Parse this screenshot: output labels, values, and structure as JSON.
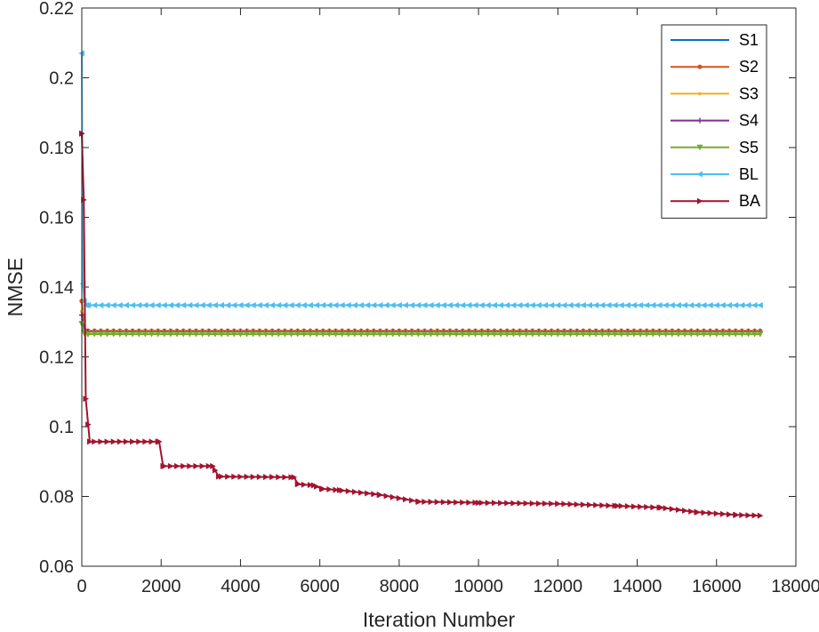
{
  "chart_data": {
    "type": "line",
    "title": "",
    "xlabel": "Iteration Number",
    "ylabel": "NMSE",
    "xlim": [
      0,
      18000
    ],
    "ylim": [
      0.06,
      0.22
    ],
    "xticks": [
      0,
      2000,
      4000,
      6000,
      8000,
      10000,
      12000,
      14000,
      16000,
      18000
    ],
    "xtick_labels": [
      "0",
      "2000",
      "4000",
      "6000",
      "8000",
      "10000",
      "12000",
      "14000",
      "16000",
      "18000"
    ],
    "yticks": [
      0.06,
      0.08,
      0.1,
      0.12,
      0.14,
      0.16,
      0.18,
      0.2,
      0.22
    ],
    "ytick_labels": [
      "0.06",
      "0.08",
      "0.1",
      "0.12",
      "0.14",
      "0.16",
      "0.18",
      "0.2",
      "0.22"
    ],
    "grid": false,
    "legend_position": "top-right",
    "series": [
      {
        "name": "S1",
        "color": "#0072BD",
        "marker": "none",
        "x": [
          0,
          60,
          150,
          17100
        ],
        "y": [
          0.131,
          0.1275,
          0.1273,
          0.1273
        ]
      },
      {
        "name": "S2",
        "color": "#D95319",
        "marker": "dot",
        "x": [
          0,
          60,
          150,
          17100
        ],
        "y": [
          0.136,
          0.128,
          0.1275,
          0.1275
        ]
      },
      {
        "name": "S3",
        "color": "#EDB120",
        "marker": "point",
        "x": [
          0,
          60,
          150,
          17100
        ],
        "y": [
          0.133,
          0.1278,
          0.1274,
          0.1274
        ]
      },
      {
        "name": "S4",
        "color": "#7E2F8E",
        "marker": "plus",
        "x": [
          0,
          60,
          150,
          17100
        ],
        "y": [
          0.132,
          0.1276,
          0.1272,
          0.1272
        ]
      },
      {
        "name": "S5",
        "color": "#77AC30",
        "marker": "triangle-down",
        "x": [
          0,
          60,
          150,
          17100
        ],
        "y": [
          0.1295,
          0.1268,
          0.1265,
          0.1265
        ]
      },
      {
        "name": "BL",
        "color": "#4DBEEE",
        "marker": "triangle-left",
        "x": [
          0,
          30,
          60,
          110,
          17100
        ],
        "y": [
          0.207,
          0.141,
          0.136,
          0.1348,
          0.1348
        ]
      },
      {
        "name": "BA",
        "color": "#A2142F",
        "marker": "triangle-right",
        "x": [
          0,
          50,
          100,
          200,
          1950,
          2050,
          3300,
          3450,
          5350,
          5450,
          5850,
          6050,
          6500,
          7500,
          8500,
          10000,
          12000,
          13500,
          14600,
          15500,
          16500,
          17100
        ],
        "y": [
          0.184,
          0.165,
          0.108,
          0.0957,
          0.0957,
          0.0887,
          0.0887,
          0.0857,
          0.0855,
          0.0835,
          0.0832,
          0.0822,
          0.0818,
          0.0805,
          0.0785,
          0.0782,
          0.0779,
          0.0773,
          0.0768,
          0.0755,
          0.0747,
          0.0745
        ]
      }
    ]
  }
}
